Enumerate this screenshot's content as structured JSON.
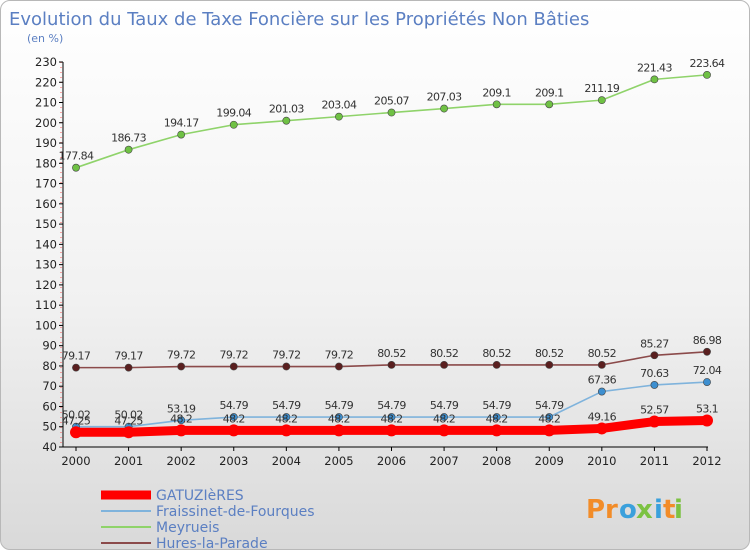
{
  "chart_data": {
    "type": "line",
    "title": "Evolution du Taux de Taxe Foncière sur les Propriétés Non Bâties",
    "subtitle": "(en %)",
    "x": [
      "2000",
      "2001",
      "2002",
      "2003",
      "2004",
      "2005",
      "2006",
      "2007",
      "2008",
      "2009",
      "2010",
      "2011",
      "2012"
    ],
    "ylim": [
      40,
      230
    ],
    "yticks": [
      40,
      50,
      60,
      70,
      80,
      90,
      100,
      110,
      120,
      130,
      140,
      150,
      160,
      170,
      180,
      190,
      200,
      210,
      220,
      230
    ],
    "grid": false,
    "series": [
      {
        "name": "Meyrueis",
        "color": "#8fd36a",
        "marker_color": "#6fc144",
        "values": [
          177.84,
          186.73,
          194.17,
          199.04,
          201.03,
          203.04,
          205.07,
          207.03,
          209.1,
          209.1,
          211.19,
          221.43,
          223.64
        ],
        "labels": [
          "177.84",
          "186.73",
          "194.17",
          "199.04",
          "201.03",
          "203.04",
          "205.07",
          "207.03",
          "209.1",
          "209.1",
          "211.19",
          "221.43",
          "223.64"
        ]
      },
      {
        "name": "Hures-la-Parade",
        "color": "#8b4a4a",
        "marker_color": "#5a1f1f",
        "values": [
          79.17,
          79.17,
          79.72,
          79.72,
          79.72,
          79.72,
          80.52,
          80.52,
          80.52,
          80.52,
          80.52,
          85.27,
          86.98
        ],
        "labels": [
          "79.17",
          "79.17",
          "79.72",
          "79.72",
          "79.72",
          "79.72",
          "80.52",
          "80.52",
          "80.52",
          "80.52",
          "80.52",
          "85.27",
          "86.98"
        ]
      },
      {
        "name": "Fraissinet-de-Fourques",
        "color": "#7fb3dc",
        "marker_color": "#3d8fd0",
        "values": [
          50.02,
          50.02,
          53.19,
          54.79,
          54.79,
          54.79,
          54.79,
          54.79,
          54.79,
          54.79,
          67.36,
          70.63,
          72.04
        ],
        "labels": [
          "50.02",
          "50.02",
          "53.19",
          "54.79",
          "54.79",
          "54.79",
          "54.79",
          "54.79",
          "54.79",
          "54.79",
          "67.36",
          "70.63",
          "72.04"
        ]
      },
      {
        "name": "GATUZIèRES",
        "color": "#ff0000",
        "marker_color": "#ff0000",
        "thick": true,
        "values": [
          47.25,
          47.25,
          48.2,
          48.2,
          48.2,
          48.2,
          48.2,
          48.2,
          48.2,
          48.2,
          49.16,
          52.57,
          53.1
        ],
        "labels": [
          "47.25",
          "47.25",
          "48.2",
          "48.2",
          "48.2",
          "48.2",
          "48.2",
          "48.2",
          "48.2",
          "48.2",
          "49.16",
          "52.57",
          "53.1"
        ]
      }
    ],
    "legend_order": [
      "GATUZIèRES",
      "Fraissinet-de-Fourques",
      "Meyrueis",
      "Hures-la-Parade"
    ],
    "legend_position": "bottom-left"
  },
  "logo": {
    "text": "Proxiti",
    "colors": [
      "#f28c28",
      "#f28c28",
      "#3aa0dc",
      "#7cc242",
      "#3aa0dc",
      "#f28c28",
      "#7cc242"
    ]
  }
}
